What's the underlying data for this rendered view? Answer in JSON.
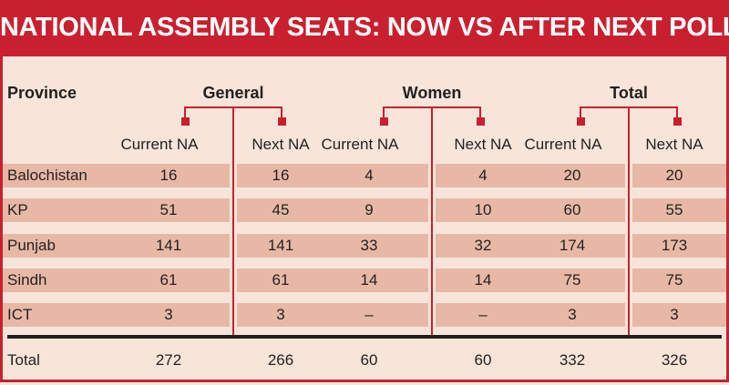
{
  "title": "NATIONAL ASSEMBLY SEATS: NOW VS AFTER NEXT POLLS",
  "colors": {
    "accent": "#c8202f",
    "band": "#e8b8a6",
    "background": "#f7e5da"
  },
  "chart_data": {
    "type": "table",
    "title": "NATIONAL ASSEMBLY SEATS: NOW VS AFTER NEXT POLLS",
    "row_header": "Province",
    "groups": [
      "General",
      "Women",
      "Total"
    ],
    "subcolumns": [
      "Current NA",
      "Next NA",
      "Current NA",
      "Next NA",
      "Current NA",
      "Next NA"
    ],
    "rows": [
      {
        "province": "Balochistan",
        "values": [
          "16",
          "16",
          "4",
          "4",
          "20",
          "20"
        ]
      },
      {
        "province": "KP",
        "values": [
          "51",
          "45",
          "9",
          "10",
          "60",
          "55"
        ]
      },
      {
        "province": "Punjab",
        "values": [
          "141",
          "141",
          "33",
          "32",
          "174",
          "173"
        ]
      },
      {
        "province": "Sindh",
        "values": [
          "61",
          "61",
          "14",
          "14",
          "75",
          "75"
        ]
      },
      {
        "province": "ICT",
        "values": [
          "3",
          "3",
          "–",
          "–",
          "3",
          "3"
        ]
      }
    ],
    "total": {
      "label": "Total",
      "values": [
        "272",
        "266",
        "60",
        "60",
        "332",
        "326"
      ]
    }
  }
}
